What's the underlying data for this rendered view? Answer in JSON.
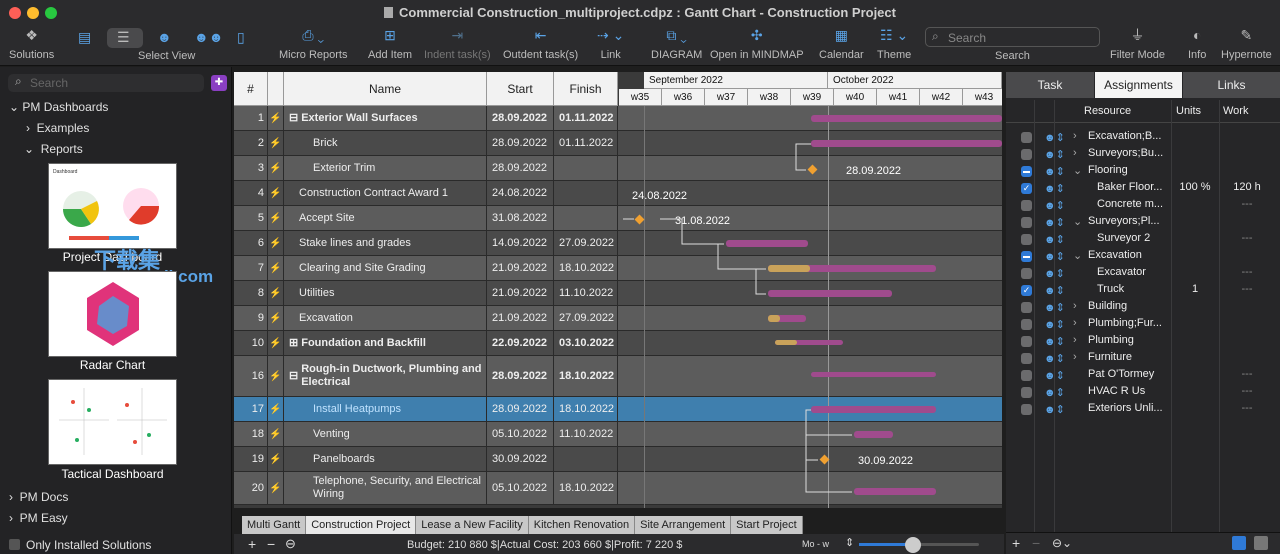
{
  "window": {
    "title": "Commercial Construction_multiproject.cdpz : Gantt Chart - Construction Project"
  },
  "toolbar": {
    "solutions": "Solutions",
    "select_view": "Select View",
    "micro_reports": "Micro Reports",
    "add_item": "Add Item",
    "indent_tasks": "Indent task(s)",
    "outdent_tasks": "Outdent task(s)",
    "link": "Link",
    "diagram": "DIAGRAM",
    "open_mindmap": "Open in MINDMAP",
    "calendar": "Calendar",
    "theme": "Theme",
    "search": "Search",
    "search_placeholder": "Search",
    "filter_mode": "Filter Mode",
    "info": "Info",
    "hypernote": "Hypernote"
  },
  "sidebar": {
    "search_placeholder": "Search",
    "pm_dashboards": "PM Dashboards",
    "examples": "Examples",
    "reports": "Reports",
    "thumbs": [
      "Project Dashboard",
      "Radar Chart",
      "Tactical Dashboard"
    ],
    "pm_docs": "PM Docs",
    "pm_easy": "PM Easy",
    "only_installed": "Only Installed Solutions",
    "watermark": "下载集",
    "watermark_url": "xzji.com"
  },
  "grid": {
    "headers": {
      "num": "#",
      "name": "Name",
      "start": "Start",
      "finish": "Finish"
    },
    "months": [
      "September 2022",
      "October 2022"
    ],
    "weeks": [
      "w35",
      "w36",
      "w37",
      "w38",
      "w39",
      "w40",
      "w41",
      "w42",
      "w43"
    ],
    "rows": [
      {
        "num": "1",
        "name": "Exterior Wall Surfaces",
        "start": "28.09.2022",
        "finish": "01.11.2022",
        "toggle": "⊟"
      },
      {
        "num": "2",
        "name": "Brick",
        "start": "28.09.2022",
        "finish": "01.11.2022"
      },
      {
        "num": "3",
        "name": "Exterior Trim",
        "start": "28.09.2022",
        "finish": ""
      },
      {
        "num": "4",
        "name": "Construction Contract Award 1",
        "start": "24.08.2022",
        "finish": ""
      },
      {
        "num": "5",
        "name": "Accept Site",
        "start": "31.08.2022",
        "finish": ""
      },
      {
        "num": "6",
        "name": "Stake lines and grades",
        "start": "14.09.2022",
        "finish": "27.09.2022"
      },
      {
        "num": "7",
        "name": "Clearing and Site Grading",
        "start": "21.09.2022",
        "finish": "18.10.2022"
      },
      {
        "num": "8",
        "name": "Utilities",
        "start": "21.09.2022",
        "finish": "11.10.2022"
      },
      {
        "num": "9",
        "name": "Excavation",
        "start": "21.09.2022",
        "finish": "27.09.2022"
      },
      {
        "num": "10",
        "name": "Foundation and Backfill",
        "start": "22.09.2022",
        "finish": "03.10.2022",
        "toggle": "⊞"
      },
      {
        "num": "16",
        "name": "Rough-in Ductwork, Plumbing and Electrical",
        "start": "28.09.2022",
        "finish": "18.10.2022",
        "toggle": "⊟"
      },
      {
        "num": "17",
        "name": "Install Heatpumps",
        "start": "28.09.2022",
        "finish": "18.10.2022"
      },
      {
        "num": "18",
        "name": "Venting",
        "start": "05.10.2022",
        "finish": "11.10.2022"
      },
      {
        "num": "19",
        "name": "Panelboards",
        "start": "30.09.2022",
        "finish": ""
      },
      {
        "num": "20",
        "name": "Telephone, Security, and Electrical Wiring",
        "start": "05.10.2022",
        "finish": "18.10.2022"
      }
    ],
    "gantt_labels": {
      "r3": "28.09.2022",
      "r4": "24.08.2022",
      "r5": "31.08.2022",
      "r19": "30.09.2022"
    }
  },
  "tabs": [
    "Multi Gantt",
    "Construction Project",
    "Lease a New Facility",
    "Kitchen Renovation",
    "Site Arrangement",
    "Start Project"
  ],
  "status": {
    "summary": "Budget: 210 880 $|Actual Cost: 203 660 $|Profit: 7 220 $",
    "zoom_mode": "Mo - w"
  },
  "right_panel": {
    "tabs": [
      "Task",
      "Assignments",
      "Links"
    ],
    "headers": {
      "resource": "Resource",
      "units": "Units",
      "work": "Work"
    },
    "rows": [
      {
        "resource": "Excavation;B...",
        "units": "",
        "work": "",
        "cb": "",
        "exp": "›"
      },
      {
        "resource": "Surveyors;Bu...",
        "units": "",
        "work": "",
        "cb": "",
        "exp": "›"
      },
      {
        "resource": "Flooring",
        "units": "",
        "work": "",
        "cb": "ind",
        "exp": "⌄"
      },
      {
        "resource": "Baker Floor...",
        "units": "100 %",
        "work": "120 h",
        "cb": "chk",
        "exp": ""
      },
      {
        "resource": "Concrete m...",
        "units": "",
        "work": "---",
        "cb": "",
        "exp": ""
      },
      {
        "resource": "Surveyors;Pl...",
        "units": "",
        "work": "",
        "cb": "",
        "exp": "⌄"
      },
      {
        "resource": "Surveyor 2",
        "units": "",
        "work": "---",
        "cb": "",
        "exp": ""
      },
      {
        "resource": "Excavation",
        "units": "",
        "work": "",
        "cb": "ind",
        "exp": "⌄"
      },
      {
        "resource": "Excavator",
        "units": "",
        "work": "---",
        "cb": "",
        "exp": ""
      },
      {
        "resource": "Truck",
        "units": "1",
        "work": "---",
        "cb": "chk",
        "exp": ""
      },
      {
        "resource": "Building",
        "units": "",
        "work": "",
        "cb": "",
        "exp": "›"
      },
      {
        "resource": "Plumbing;Fur...",
        "units": "",
        "work": "",
        "cb": "",
        "exp": "›"
      },
      {
        "resource": "Plumbing",
        "units": "",
        "work": "",
        "cb": "",
        "exp": "›"
      },
      {
        "resource": "Furniture",
        "units": "",
        "work": "",
        "cb": "",
        "exp": "›"
      },
      {
        "resource": "Pat O'Tormey",
        "units": "",
        "work": "---",
        "cb": "",
        "exp": ""
      },
      {
        "resource": "HVAC R Us",
        "units": "",
        "work": "---",
        "cb": "",
        "exp": ""
      },
      {
        "resource": "Exteriors Unli...",
        "units": "",
        "work": "---",
        "cb": "",
        "exp": ""
      }
    ]
  }
}
